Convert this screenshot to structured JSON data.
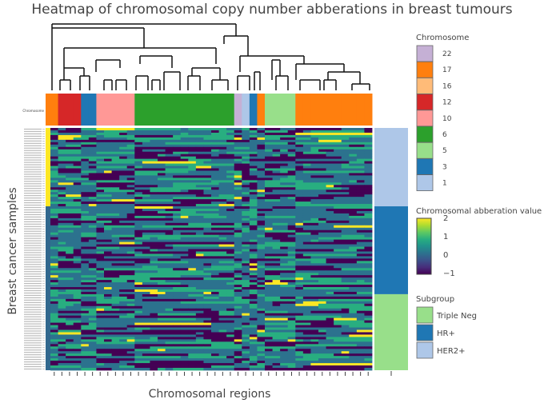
{
  "chart_data": {
    "type": "heatmap",
    "title": "Heatmap of chromosomal copy number abberations in breast tumours",
    "xlabel": "Chromosomal regions",
    "ylabel": "Breast cancer samples",
    "row_annotation_label": "Chromosome",
    "chromosome_column_annotation": [
      "17",
      "12",
      "12",
      "12",
      "3",
      "3",
      "10",
      "10",
      "10",
      "10",
      "10",
      "6",
      "6",
      "6",
      "6",
      "6",
      "6",
      "6",
      "6",
      "6",
      "6",
      "6",
      "6",
      "6",
      "22",
      "1",
      "3",
      "17",
      "5",
      "5",
      "5",
      "5",
      "17",
      "17",
      "17",
      "17",
      "17",
      "17",
      "17",
      "17",
      "17",
      "17"
    ],
    "subgroup_row_annotation": {
      "HER2+": 33,
      "HR+": 37,
      "Triple Neg": 32
    },
    "value_range": [
      -1,
      2
    ],
    "colorscale": [
      "#440154",
      "#472d7b",
      "#3b528b",
      "#2c728e",
      "#21918c",
      "#28ae80",
      "#5ec962",
      "#addc30",
      "#fde725"
    ],
    "legends": {
      "chromosome": {
        "title": "Chromosome",
        "entries": [
          {
            "label": "22",
            "color": "#c5b0d5"
          },
          {
            "label": "17",
            "color": "#ff7f0e"
          },
          {
            "label": "16",
            "color": "#ffbb78"
          },
          {
            "label": "12",
            "color": "#d62728"
          },
          {
            "label": "10",
            "color": "#ff9896"
          },
          {
            "label": "6",
            "color": "#2ca02c"
          },
          {
            "label": "5",
            "color": "#98df8a"
          },
          {
            "label": "3",
            "color": "#1f77b4"
          },
          {
            "label": "1",
            "color": "#aec7e8"
          }
        ]
      },
      "colorbar": {
        "title": "Chromosomal abberation value",
        "ticks": [
          "2",
          "1",
          "0",
          "−1"
        ]
      },
      "subgroup": {
        "title": "Subgroup",
        "entries": [
          {
            "label": "Triple Neg",
            "color": "#98df8a"
          },
          {
            "label": "HR+",
            "color": "#1f77b4"
          },
          {
            "label": "HER2+",
            "color": "#aec7e8"
          }
        ]
      }
    },
    "grid": false
  }
}
